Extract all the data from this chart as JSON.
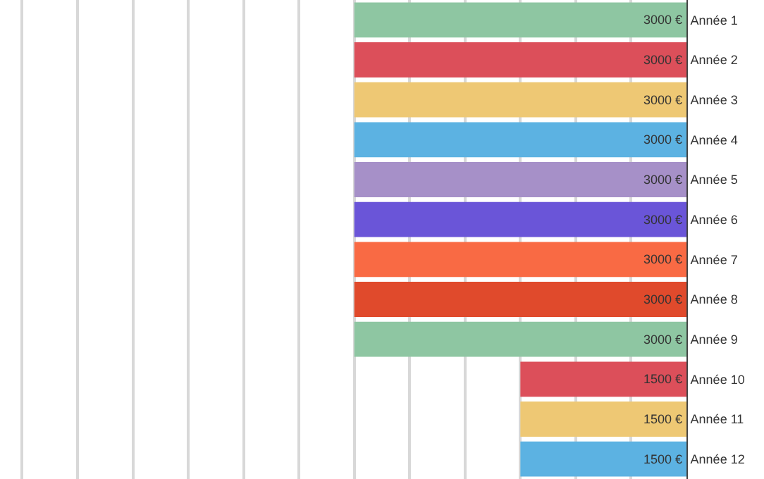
{
  "chart_data": {
    "type": "bar",
    "orientation": "horizontal",
    "categories": [
      "Année 1",
      "Année 2",
      "Année 3",
      "Année 4",
      "Année 5",
      "Année 6",
      "Année 7",
      "Année 8",
      "Année 9",
      "Année 10",
      "Année 11",
      "Année 12"
    ],
    "values": [
      3000,
      3000,
      3000,
      3000,
      3000,
      3000,
      3000,
      3000,
      3000,
      1500,
      1500,
      1500
    ],
    "value_labels": [
      "3000 €",
      "3000 €",
      "3000 €",
      "3000 €",
      "3000 €",
      "3000 €",
      "3000 €",
      "3000 €",
      "3000 €",
      "1500 €",
      "1500 €",
      "1500 €"
    ],
    "colors": [
      "#8ec6a2",
      "#dc4f5a",
      "#eec874",
      "#5cb2e2",
      "#a690c8",
      "#6a55d8",
      "#f96a44",
      "#e04a2c",
      "#8ec6a2",
      "#dc4f5a",
      "#eec874",
      "#5cb2e2"
    ],
    "xlim": [
      6200,
      0
    ],
    "xticks": [
      {
        "value": 500,
        "label": null
      },
      {
        "value": 1000,
        "label": null
      },
      {
        "value": 1500,
        "label": null
      },
      {
        "value": 2000,
        "label": null
      },
      {
        "value": 2500,
        "label": null
      },
      {
        "value": 3000,
        "label": null
      },
      {
        "value": 3500,
        "label": null
      },
      {
        "value": 4000,
        "label": null
      },
      {
        "value": 4500,
        "label": null
      },
      {
        "value": 5000,
        "label": null
      },
      {
        "value": 5500,
        "label": null
      },
      {
        "value": 6000,
        "label": null
      }
    ],
    "grid": "x",
    "tick_labels": "y",
    "legend": false
  }
}
